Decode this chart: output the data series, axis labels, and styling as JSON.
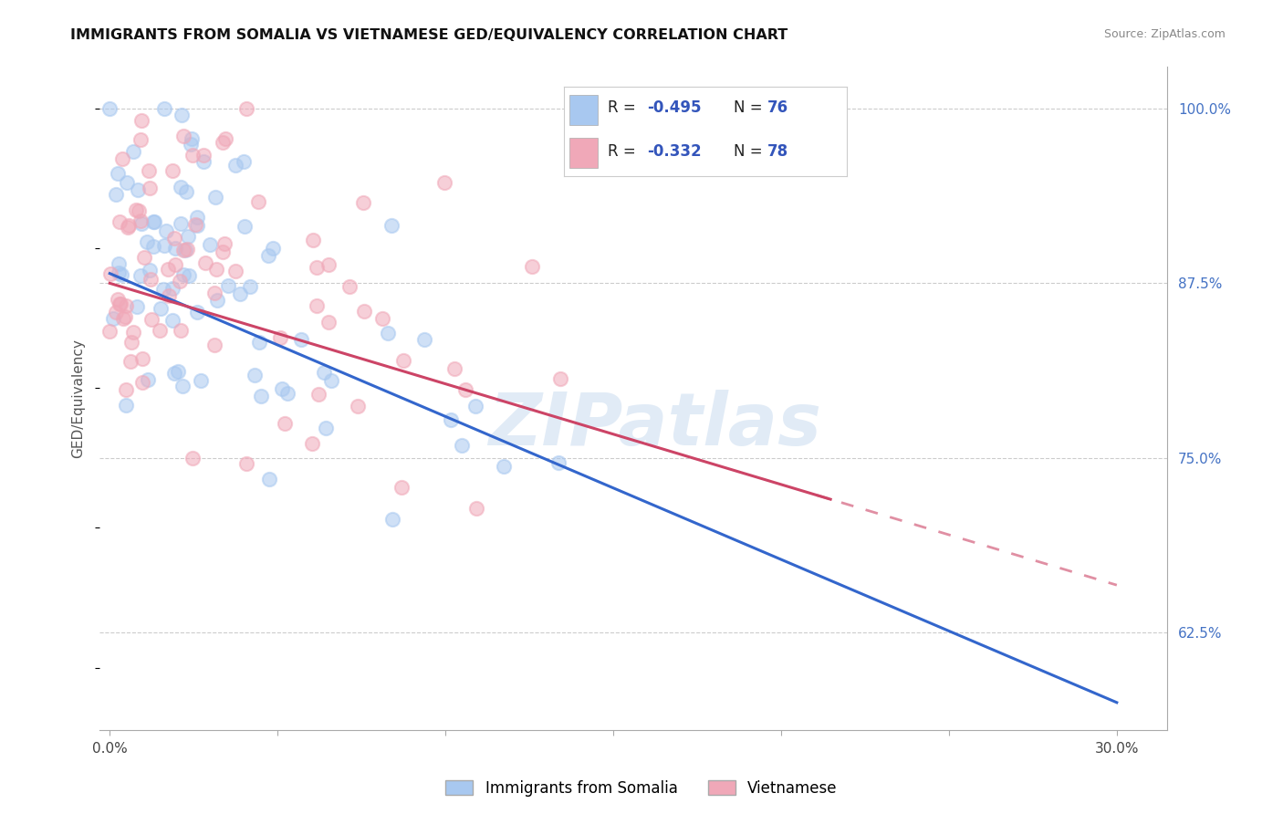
{
  "title": "IMMIGRANTS FROM SOMALIA VS VIETNAMESE GED/EQUIVALENCY CORRELATION CHART",
  "source": "Source: ZipAtlas.com",
  "ylabel_label": "GED/Equivalency",
  "xlim": [
    -0.003,
    0.315
  ],
  "ylim": [
    0.555,
    1.03
  ],
  "legend_r1": "-0.495",
  "legend_n1": "76",
  "legend_r2": "-0.332",
  "legend_n2": "78",
  "color_somalia": "#a8c8f0",
  "color_vietnamese": "#f0a8b8",
  "color_somalia_line": "#3366cc",
  "color_vietnamese_line": "#cc4466",
  "watermark": "ZIPatlas",
  "yticks": [
    0.625,
    0.75,
    0.875,
    1.0
  ],
  "ytick_labels": [
    "62.5%",
    "75.0%",
    "87.5%",
    "100.0%"
  ]
}
